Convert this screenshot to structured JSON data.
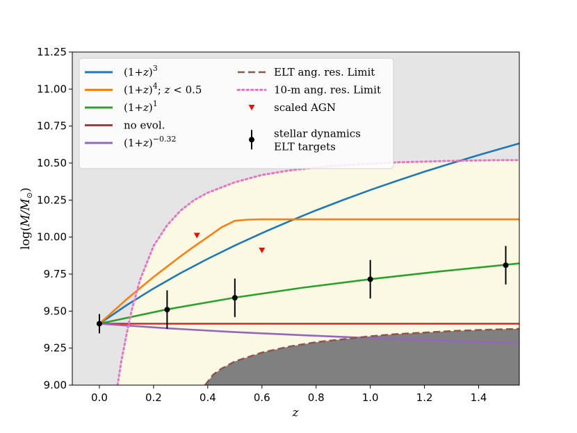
{
  "chart_data": {
    "type": "line",
    "title": "",
    "xlabel": "z",
    "ylabel": "log(M/M⊙)",
    "xlim": [
      -0.1,
      1.55
    ],
    "ylim": [
      9.0,
      11.25
    ],
    "grid": false,
    "legend_placement": "top-left",
    "x_ticks": [
      "0.0",
      "0.2",
      "0.4",
      "0.6",
      "0.8",
      "1.0",
      "1.2",
      "1.4"
    ],
    "y_ticks": [
      "9.00",
      "9.25",
      "9.50",
      "9.75",
      "10.00",
      "10.25",
      "10.50",
      "10.75",
      "11.00",
      "11.25"
    ],
    "colors": {
      "background": "#e5e5e5",
      "allowed_region": "#fbf8e4",
      "elt_excluded": "#808080",
      "series_3": "#1f77b4",
      "series_4": "#ff7f0e",
      "series_1": "#2ca02c",
      "no_evol": "#d62728",
      "series_neg": "#9467bd",
      "elt_limit": "#8c564b",
      "tenm_limit": "#e377c2",
      "agn": "#ff0000",
      "stellar": "#000000"
    },
    "series": [
      {
        "name": "(1+z)^3",
        "label_main": "(1+",
        "label_var": "z",
        "label_close": ")",
        "label_sup": "3",
        "color": "#1f77b4",
        "style": "solid",
        "x": [
          0,
          0.1,
          0.2,
          0.3,
          0.4,
          0.5,
          0.6,
          0.7,
          0.8,
          0.9,
          1.0,
          1.1,
          1.2,
          1.3,
          1.4,
          1.5,
          1.55
        ],
        "y": [
          9.415,
          9.539,
          9.653,
          9.757,
          9.853,
          9.943,
          10.027,
          10.106,
          10.181,
          10.251,
          10.318,
          10.381,
          10.442,
          10.499,
          10.554,
          10.607,
          10.633
        ]
      },
      {
        "name": "(1+z)^4; z<0.5",
        "label_main": "(1+",
        "label_var": "z",
        "label_close": ")",
        "label_sup": "4",
        "label_tail": "; ",
        "label_tail_var": "z",
        "label_tail_rest": " < 0.5",
        "color": "#ff7f0e",
        "style": "solid",
        "x": [
          0,
          0.1,
          0.2,
          0.3,
          0.35,
          0.4,
          0.45,
          0.5,
          0.55,
          0.6,
          0.8,
          1.0,
          1.2,
          1.4,
          1.55
        ],
        "y": [
          9.415,
          9.579,
          9.731,
          9.871,
          9.937,
          10.0,
          10.065,
          10.11,
          10.118,
          10.12,
          10.12,
          10.12,
          10.12,
          10.12,
          10.12
        ]
      },
      {
        "name": "(1+z)^1",
        "label_main": "(1+",
        "label_var": "z",
        "label_close": ")",
        "label_sup": "1",
        "color": "#2ca02c",
        "style": "solid",
        "x": [
          0,
          0.25,
          0.5,
          0.75,
          1.0,
          1.25,
          1.5,
          1.55
        ],
        "y": [
          9.415,
          9.512,
          9.591,
          9.658,
          9.716,
          9.767,
          9.813,
          9.822
        ]
      },
      {
        "name": "no evol.",
        "label_main": "no evol.",
        "color": "#d62728",
        "style": "solid",
        "x": [
          0,
          1.55
        ],
        "y": [
          9.415,
          9.415
        ]
      },
      {
        "name": "(1+z)^-0.32",
        "label_main": "(1+",
        "label_var": "z",
        "label_close": ")",
        "label_sup": "−0.32",
        "color": "#9467bd",
        "style": "solid",
        "x": [
          0,
          0.25,
          0.5,
          0.75,
          1.0,
          1.25,
          1.5,
          1.55
        ],
        "y": [
          9.415,
          9.384,
          9.358,
          9.337,
          9.318,
          9.302,
          9.287,
          9.284
        ]
      },
      {
        "name": "ELT ang. res. Limit",
        "label_main": "ELT ang. res. Limit",
        "color": "#8c564b",
        "style": "dashed",
        "x": [
          0.39,
          0.42,
          0.45,
          0.5,
          0.55,
          0.6,
          0.7,
          0.8,
          0.9,
          1.0,
          1.1,
          1.2,
          1.3,
          1.4,
          1.5,
          1.55
        ],
        "y": [
          9.0,
          9.07,
          9.11,
          9.16,
          9.19,
          9.22,
          9.26,
          9.29,
          9.31,
          9.33,
          9.345,
          9.355,
          9.365,
          9.372,
          9.378,
          9.38
        ]
      },
      {
        "name": "10-m ang. res. Limit",
        "label_main": "10-m ang. res. Limit",
        "color": "#e377c2",
        "style": "dotted",
        "x": [
          0.067,
          0.08,
          0.1,
          0.12,
          0.15,
          0.2,
          0.25,
          0.3,
          0.35,
          0.4,
          0.5,
          0.6,
          0.7,
          0.8,
          0.9,
          1.0,
          1.1,
          1.2,
          1.3,
          1.4,
          1.5,
          1.55
        ],
        "y": [
          9.0,
          9.15,
          9.34,
          9.51,
          9.71,
          9.94,
          10.08,
          10.18,
          10.25,
          10.3,
          10.37,
          10.42,
          10.45,
          10.47,
          10.485,
          10.495,
          10.505,
          10.51,
          10.515,
          10.518,
          10.52,
          10.52
        ]
      }
    ],
    "agn_points": {
      "name": "scaled AGN",
      "x": [
        0.36,
        0.6
      ],
      "y": [
        10.01,
        9.91
      ]
    },
    "stellar_points": {
      "name": "stellar dynamics",
      "name_line2": "ELT targets",
      "x": [
        0.0,
        0.25,
        0.5,
        1.0,
        1.5
      ],
      "y": [
        9.415,
        9.51,
        9.59,
        9.715,
        9.81
      ],
      "err": [
        0.065,
        0.13,
        0.13,
        0.13,
        0.13
      ]
    }
  }
}
